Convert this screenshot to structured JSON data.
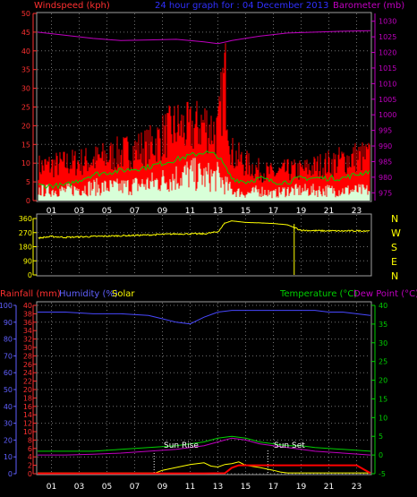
{
  "header": {
    "left": "Windspeed (kph)",
    "center": "24 hour graph for : 04 December 2013",
    "right": "Barometer (mb)"
  },
  "colors": {
    "background": "#000000",
    "axis": "#a0a0a0",
    "wind_axis": "#ff3030",
    "baro_axis": "#c000c0",
    "wind_gust": "#ff0000",
    "wind_avg": "#00d000",
    "wind_speed": "#d8ffd8",
    "baro": "#c000c0",
    "direction": "#ffff00",
    "compass": "#ffff00",
    "rain_axis": "#ff3030",
    "humidity_axis": "#6060ff",
    "solar_axis": "#ffff00",
    "temp_axis": "#00d000",
    "humidity": "#4848ff",
    "temperature": "#00d000",
    "dewpoint": "#c000c0",
    "rain": "#ff0000",
    "solar": "#ffff00",
    "grid": "#707070"
  },
  "compass": [
    "N",
    "W",
    "S",
    "E",
    "N"
  ],
  "bottom_labels": {
    "rain": "Rainfall (mm)",
    "humidity": "Humidity (%)",
    "solar": "Solar",
    "temperature": "Temperature (°C)",
    "dewpoint": "Dew Point (°C)",
    "sunrise": "Sun Rise",
    "sunset": "Sun Set"
  },
  "chart_data": [
    {
      "type": "line",
      "id": "wind",
      "hour_ticks": [
        "01",
        "03",
        "05",
        "07",
        "09",
        "11",
        "13",
        "15",
        "17",
        "19",
        "21",
        "23"
      ],
      "y_left": {
        "label": "Windspeed (kph)",
        "range": [
          0,
          50
        ],
        "ticks": [
          0,
          5,
          10,
          15,
          20,
          25,
          30,
          35,
          40,
          45,
          50
        ]
      },
      "y_right": {
        "label": "Barometer (mb)",
        "range": [
          972.5,
          1032.5
        ],
        "ticks": [
          975,
          980,
          985,
          990,
          995,
          1000,
          1005,
          1010,
          1015,
          1020,
          1025,
          1030
        ]
      },
      "series": [
        {
          "name": "gust",
          "hours": [
            0,
            2,
            4,
            6,
            8,
            9,
            10,
            11,
            12,
            13,
            13.5,
            14,
            15,
            16,
            17,
            18,
            19,
            20,
            21,
            22,
            23,
            24
          ],
          "values": [
            10,
            11,
            12,
            14,
            16,
            19,
            22,
            21,
            23,
            20,
            38,
            14,
            11,
            9,
            8,
            9,
            9,
            10,
            11,
            12,
            13,
            13
          ]
        },
        {
          "name": "average",
          "hours": [
            0,
            2,
            4,
            6,
            8,
            9,
            10,
            11,
            12,
            13,
            14,
            15,
            16,
            17,
            18,
            19,
            20,
            21,
            22,
            23,
            24
          ],
          "values": [
            4,
            4,
            7,
            8,
            9,
            10,
            11,
            12,
            13,
            12,
            6,
            5,
            6,
            5,
            5,
            6,
            6,
            6,
            6,
            7,
            8
          ]
        },
        {
          "name": "speed",
          "hours": [
            0,
            2,
            4,
            6,
            8,
            9,
            10,
            11,
            12,
            13,
            14,
            15,
            16,
            17,
            18,
            19,
            20,
            21,
            22,
            23,
            24
          ],
          "values": [
            3,
            3,
            4,
            4,
            5,
            6,
            7,
            8,
            7,
            7,
            3,
            2,
            3,
            2,
            3,
            3,
            3,
            3,
            3,
            3,
            3
          ]
        },
        {
          "name": "barometer",
          "hours": [
            0,
            2,
            4,
            6,
            8,
            10,
            12,
            13,
            14,
            16,
            18,
            20,
            22,
            24
          ],
          "values": [
            1026.5,
            1025.5,
            1024.5,
            1023.8,
            1024,
            1024.2,
            1023.4,
            1022.8,
            1023.8,
            1025.2,
            1026.2,
            1026.5,
            1026.8,
            1027
          ]
        }
      ]
    },
    {
      "type": "line",
      "id": "direction",
      "y_left": {
        "range": [
          0,
          360
        ],
        "ticks": [
          0,
          90,
          180,
          270,
          360
        ]
      },
      "series": [
        {
          "name": "direction",
          "hours": [
            0,
            1,
            2,
            4,
            6,
            8,
            10,
            12,
            13,
            13.5,
            14,
            15,
            16,
            17,
            18,
            19,
            20,
            22,
            24
          ],
          "values": [
            235,
            245,
            240,
            245,
            250,
            255,
            262,
            262,
            275,
            330,
            345,
            335,
            332,
            328,
            320,
            285,
            282,
            280,
            282
          ]
        }
      ]
    },
    {
      "type": "line",
      "id": "temp",
      "y_left_rain": {
        "range": [
          0,
          100
        ],
        "ticks": [
          0,
          10,
          20,
          30,
          40,
          50,
          60,
          70,
          80,
          90,
          100
        ]
      },
      "y_left_humidity": {
        "range": [
          0,
          40
        ],
        "ticks": [
          0,
          2,
          4,
          6,
          8,
          10,
          12,
          14,
          16,
          18,
          20,
          22,
          24,
          26,
          28,
          30,
          32,
          34,
          36,
          38,
          40
        ]
      },
      "y_right": {
        "range": [
          -5,
          40
        ],
        "ticks": [
          -5,
          0,
          5,
          10,
          15,
          20,
          25,
          30,
          35,
          40
        ]
      },
      "series": [
        {
          "name": "humidity",
          "hours": [
            0,
            2,
            4,
            6,
            8,
            9,
            10,
            11,
            12,
            13,
            14,
            15,
            16,
            17,
            18,
            19,
            20,
            21,
            22,
            23,
            24
          ],
          "values": [
            96,
            96,
            95,
            95,
            94,
            92,
            90,
            89,
            93,
            96,
            97,
            97,
            97,
            97,
            97,
            97,
            97,
            96,
            96,
            95,
            94
          ]
        },
        {
          "name": "temperature",
          "hours": [
            0,
            2,
            4,
            6,
            8,
            10,
            12,
            13,
            14,
            15,
            16,
            17,
            18,
            19,
            20,
            22,
            24
          ],
          "values": [
            1,
            1,
            1,
            1.5,
            2,
            2.5,
            3.5,
            4.5,
            5,
            4.5,
            3.5,
            3,
            2.5,
            2.5,
            2,
            1.5,
            1
          ]
        },
        {
          "name": "dewpoint",
          "hours": [
            0,
            2,
            4,
            6,
            8,
            10,
            12,
            13,
            14,
            15,
            16,
            17,
            18,
            19,
            20,
            22,
            24
          ],
          "values": [
            0,
            0,
            0.2,
            0.5,
            1,
            1.5,
            2.5,
            3.5,
            4.5,
            4,
            3,
            2.5,
            2,
            1.5,
            1,
            0.5,
            0
          ]
        },
        {
          "name": "rain",
          "hours": [
            0,
            12,
            13.5,
            14,
            14.5,
            15,
            17,
            19,
            21,
            23,
            24
          ],
          "values": [
            0.2,
            0.2,
            0.3,
            3.5,
            5,
            5,
            5,
            5,
            5,
            5,
            0.3
          ]
        },
        {
          "name": "solar",
          "hours": [
            0,
            8.5,
            9,
            10,
            11,
            12,
            12.5,
            13,
            13.5,
            14,
            14.5,
            15,
            16,
            17,
            17.5,
            18,
            24
          ],
          "values": [
            0.2,
            0.2,
            0.8,
            1.5,
            2.2,
            2.6,
            1.8,
            1.6,
            2.2,
            2.4,
            2.8,
            2.0,
            1.5,
            0.8,
            0.4,
            0.2,
            0.2
          ]
        }
      ],
      "markers": {
        "sunrise_hour": 8.4,
        "sunset_hour": 16.6
      }
    }
  ]
}
